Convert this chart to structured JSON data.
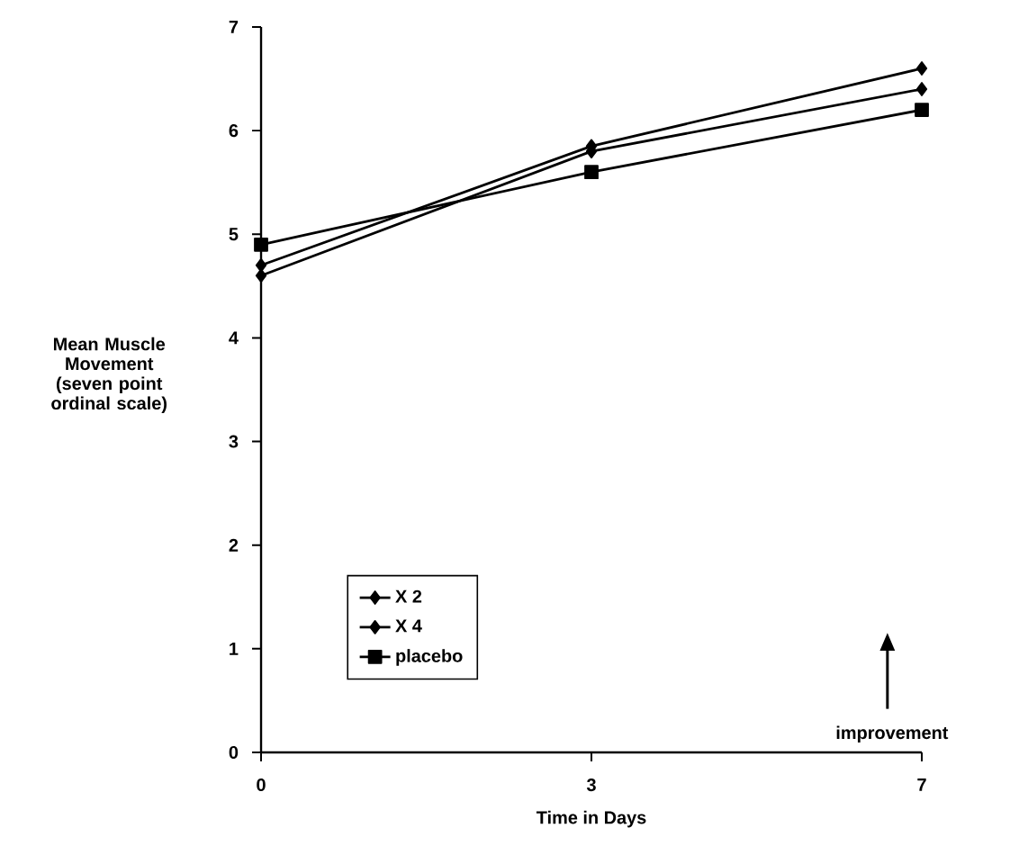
{
  "chart_data": {
    "type": "line",
    "xlabel": "Time in Days",
    "ylabel": "Mean Muscle Movement (seven point ordinal scale)",
    "categories": [
      "0",
      "3",
      "7"
    ],
    "series": [
      {
        "name": "X 2",
        "color": "#000000",
        "marker": "diamond",
        "values": [
          4.6,
          5.8,
          6.4
        ]
      },
      {
        "name": "X 4",
        "color": "#000000",
        "marker": "diamond",
        "values": [
          4.7,
          5.85,
          6.6
        ]
      },
      {
        "name": "placebo",
        "color": "#000000",
        "marker": "square",
        "values": [
          4.9,
          5.6,
          6.2
        ]
      }
    ],
    "ylim": [
      0,
      7
    ],
    "yticks": [
      0,
      1,
      2,
      3,
      4,
      5,
      6,
      7
    ],
    "grid": false,
    "legend": "bottom left",
    "annotations": [
      "improvement"
    ]
  }
}
